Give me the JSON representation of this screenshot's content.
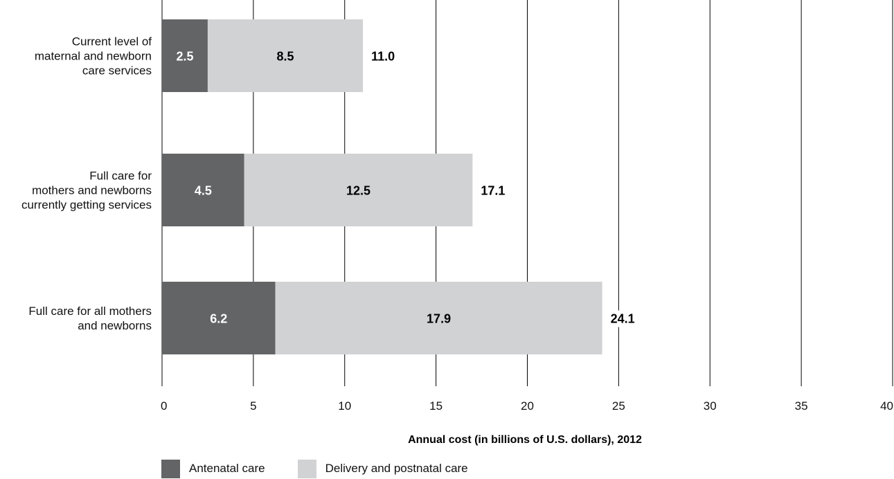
{
  "chart_data": {
    "type": "bar",
    "orientation": "horizontal",
    "stacked": true,
    "categories": [
      [
        "Current level of",
        "maternal and newborn",
        "care services"
      ],
      [
        "Full care for",
        "mothers and newborns",
        "currently getting services"
      ],
      [
        "Full care for all mothers",
        "and newborns"
      ]
    ],
    "series": [
      {
        "name": "Antenatal care",
        "values": [
          2.5,
          4.5,
          6.2
        ],
        "labels": [
          "2.5",
          "4.5",
          "6.2"
        ],
        "color": "#636466",
        "label_color": "#ffffff"
      },
      {
        "name": "Delivery and postnatal care",
        "values": [
          8.5,
          12.5,
          17.9
        ],
        "labels": [
          "8.5",
          "12.5",
          "17.9"
        ],
        "color": "#d1d2d4",
        "label_color": "#000000"
      }
    ],
    "totals": [
      "11.0",
      "17.1",
      "24.1"
    ],
    "xlabel": "Annual cost (in billions of U.S. dollars), 2012",
    "xlim": [
      0,
      40
    ],
    "xticks": [
      0,
      5,
      10,
      15,
      20,
      25,
      30,
      35,
      40
    ],
    "grid": "vertical",
    "legend_position": "bottom"
  }
}
